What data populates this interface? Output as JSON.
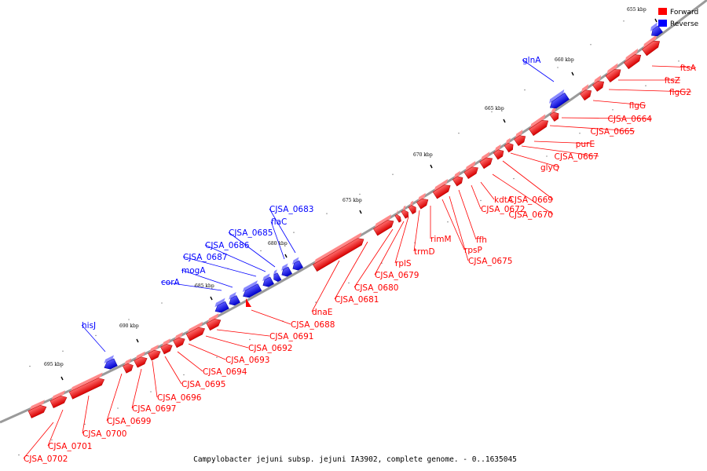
{
  "caption": "Campylobacter jejuni subsp. jejuni IA3902, complete genome. - 0..1635045",
  "legend": [
    {
      "label": "Forward",
      "color": "#ff0000"
    },
    {
      "label": "Reverse",
      "color": "#0000ff"
    }
  ],
  "colors": {
    "forward": "#ff0000",
    "reverse": "#0000ff",
    "backbone": "#999999"
  },
  "ticks": [
    "655 kbp",
    "660 kbp",
    "665 kbp",
    "670 kbp",
    "675 kbp",
    "680 kbp",
    "685 kbp",
    "690 kbp",
    "695 kbp"
  ],
  "genes_forward": [
    "ftsA",
    "ftsZ",
    "flgG2",
    "flgG",
    "CJSA_0664",
    "CJSA_0665",
    "purE",
    "CJSA_0667",
    "glyQ",
    "CJSA_0669",
    "CJSA_0670",
    "kdtA",
    "CJSA_0672",
    "ffh",
    "CJSA_0675",
    "rpsP",
    "rimM",
    "trmD",
    "rplS",
    "CJSA_0679",
    "CJSA_0680",
    "CJSA_0681",
    "dnaE",
    "CJSA_0688",
    "CJSA_0691",
    "CJSA_0692",
    "CJSA_0693",
    "CJSA_0694",
    "CJSA_0695",
    "CJSA_0696",
    "CJSA_0697",
    "CJSA_0699",
    "CJSA_0700",
    "CJSA_0701",
    "CJSA_0702"
  ],
  "genes_reverse": [
    "glnA",
    "CJSA_0683",
    "flaC",
    "CJSA_0685",
    "CJSA_0686",
    "CJSA_0687",
    "mogA",
    "corA",
    "hisJ"
  ]
}
